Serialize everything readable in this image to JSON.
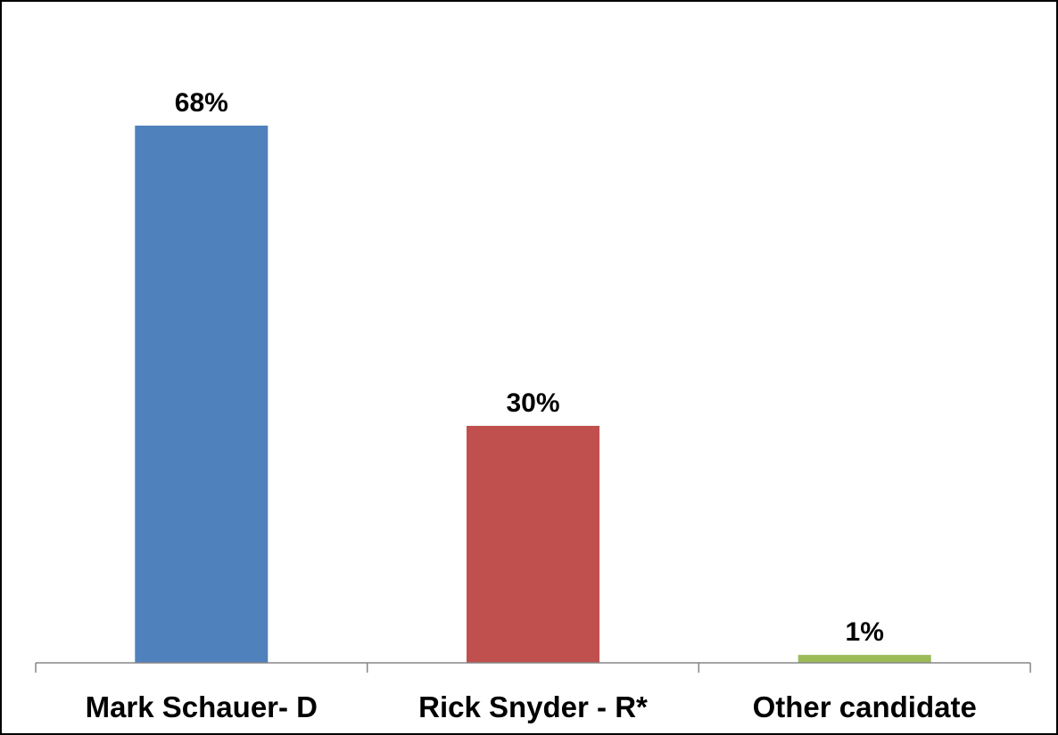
{
  "chart_data": {
    "type": "bar",
    "categories": [
      "Mark Schauer- D",
      "Rick Snyder - R*",
      "Other candidate"
    ],
    "values": [
      68,
      30,
      1
    ],
    "data_labels": [
      "68%",
      "30%",
      "1%"
    ],
    "colors": [
      "#4F81BD",
      "#C0504D",
      "#9BBB59"
    ],
    "title": "",
    "xlabel": "",
    "ylabel": "",
    "ylim": [
      0,
      68
    ],
    "grid": false,
    "legend": "none",
    "y_axis_visible": false
  }
}
